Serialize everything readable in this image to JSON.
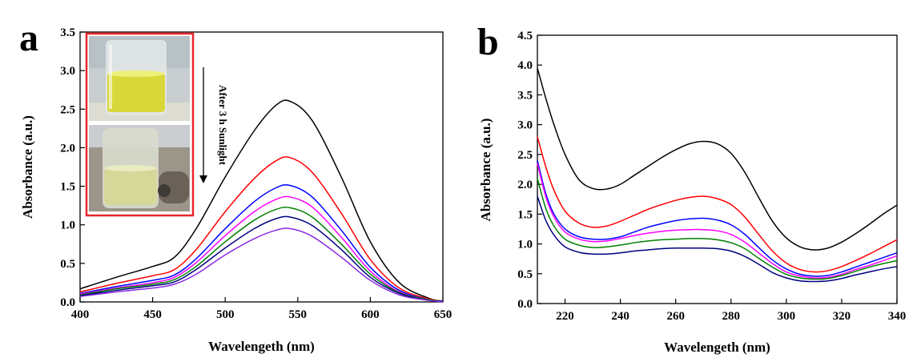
{
  "figure": {
    "panels": [
      {
        "letter": "a"
      },
      {
        "letter": "b"
      }
    ]
  },
  "inset": {
    "annotation": "After 3 h Sunlight",
    "images": [
      "yellow-solution-before",
      "pale-solution-after"
    ]
  },
  "chart_data": [
    {
      "type": "line",
      "panel": "a",
      "xlabel": "Wavelengeth (nm)",
      "ylabel": "Absorbance (a.u.)",
      "xlim": [
        400,
        650
      ],
      "ylim": [
        0,
        3.5
      ],
      "xticks": [
        400,
        450,
        500,
        550,
        600,
        650
      ],
      "yticks": [
        0.0,
        0.5,
        1.0,
        1.5,
        2.0,
        2.5,
        3.0,
        3.5
      ],
      "grid": false,
      "x": [
        400,
        425,
        450,
        465,
        480,
        500,
        520,
        535,
        545,
        560,
        580,
        600,
        620,
        640,
        650
      ],
      "series": [
        {
          "color": "#000000",
          "values": [
            0.17,
            0.32,
            0.46,
            0.58,
            0.95,
            1.62,
            2.22,
            2.55,
            2.6,
            2.35,
            1.62,
            0.78,
            0.25,
            0.05,
            0.01
          ]
        },
        {
          "color": "#ff0000",
          "values": [
            0.13,
            0.24,
            0.34,
            0.42,
            0.68,
            1.17,
            1.6,
            1.83,
            1.87,
            1.68,
            1.15,
            0.55,
            0.18,
            0.04,
            0.01
          ]
        },
        {
          "color": "#0000ff",
          "values": [
            0.11,
            0.2,
            0.28,
            0.35,
            0.56,
            0.95,
            1.3,
            1.48,
            1.51,
            1.36,
            0.93,
            0.45,
            0.15,
            0.03,
            0.01
          ]
        },
        {
          "color": "#ff00ff",
          "values": [
            0.1,
            0.18,
            0.25,
            0.32,
            0.51,
            0.86,
            1.17,
            1.33,
            1.36,
            1.23,
            0.84,
            0.4,
            0.13,
            0.03,
            0.01
          ]
        },
        {
          "color": "#008000",
          "values": [
            0.09,
            0.17,
            0.23,
            0.29,
            0.46,
            0.78,
            1.06,
            1.2,
            1.22,
            1.1,
            0.75,
            0.36,
            0.12,
            0.03,
            0.01
          ]
        },
        {
          "color": "#000080",
          "values": [
            0.08,
            0.15,
            0.21,
            0.26,
            0.42,
            0.7,
            0.95,
            1.08,
            1.1,
            0.99,
            0.68,
            0.32,
            0.11,
            0.02,
            0.01
          ]
        },
        {
          "color": "#8a2be2",
          "values": [
            0.07,
            0.13,
            0.18,
            0.23,
            0.36,
            0.61,
            0.82,
            0.93,
            0.95,
            0.85,
            0.58,
            0.28,
            0.09,
            0.02,
            0.0
          ]
        }
      ]
    },
    {
      "type": "line",
      "panel": "b",
      "xlabel": "Wavelengeth (nm)",
      "ylabel": "Absorbance (a.u.)",
      "xlim": [
        210,
        340
      ],
      "ylim": [
        0,
        4.5
      ],
      "xticks": [
        220,
        240,
        260,
        280,
        300,
        320,
        340
      ],
      "yticks": [
        0.0,
        0.5,
        1.0,
        1.5,
        2.0,
        2.5,
        3.0,
        3.5,
        4.0,
        4.5
      ],
      "grid": false,
      "x": [
        210,
        213,
        216,
        220,
        225,
        230,
        235,
        240,
        245,
        250,
        255,
        260,
        265,
        270,
        275,
        280,
        285,
        290,
        295,
        300,
        305,
        310,
        315,
        320,
        325,
        330,
        335,
        340
      ],
      "series": [
        {
          "color": "#000000",
          "values": [
            3.95,
            3.45,
            3.0,
            2.5,
            2.08,
            1.93,
            1.92,
            2.0,
            2.15,
            2.3,
            2.45,
            2.58,
            2.68,
            2.72,
            2.68,
            2.52,
            2.2,
            1.78,
            1.38,
            1.1,
            0.95,
            0.9,
            0.93,
            1.03,
            1.17,
            1.33,
            1.5,
            1.65
          ]
        },
        {
          "color": "#ff0000",
          "values": [
            2.8,
            2.3,
            1.9,
            1.55,
            1.35,
            1.28,
            1.3,
            1.38,
            1.48,
            1.58,
            1.66,
            1.73,
            1.78,
            1.8,
            1.76,
            1.66,
            1.45,
            1.16,
            0.88,
            0.68,
            0.57,
            0.53,
            0.55,
            0.62,
            0.72,
            0.83,
            0.95,
            1.07
          ]
        },
        {
          "color": "#0000ff",
          "values": [
            2.4,
            1.85,
            1.5,
            1.25,
            1.12,
            1.08,
            1.08,
            1.12,
            1.2,
            1.28,
            1.34,
            1.39,
            1.42,
            1.43,
            1.4,
            1.32,
            1.16,
            0.94,
            0.73,
            0.58,
            0.49,
            0.46,
            0.47,
            0.53,
            0.61,
            0.69,
            0.77,
            0.85
          ]
        },
        {
          "color": "#ff00ff",
          "values": [
            2.35,
            1.8,
            1.45,
            1.2,
            1.08,
            1.04,
            1.05,
            1.09,
            1.14,
            1.18,
            1.21,
            1.23,
            1.24,
            1.24,
            1.22,
            1.16,
            1.03,
            0.85,
            0.67,
            0.53,
            0.46,
            0.43,
            0.44,
            0.49,
            0.57,
            0.64,
            0.72,
            0.8
          ]
        },
        {
          "color": "#008000",
          "values": [
            2.1,
            1.6,
            1.3,
            1.08,
            0.98,
            0.94,
            0.95,
            0.98,
            1.02,
            1.05,
            1.07,
            1.08,
            1.09,
            1.09,
            1.07,
            1.02,
            0.92,
            0.76,
            0.61,
            0.49,
            0.43,
            0.41,
            0.42,
            0.47,
            0.54,
            0.61,
            0.67,
            0.72
          ]
        },
        {
          "color": "#000080",
          "values": [
            1.8,
            1.4,
            1.15,
            0.95,
            0.86,
            0.83,
            0.83,
            0.85,
            0.88,
            0.9,
            0.92,
            0.93,
            0.93,
            0.93,
            0.92,
            0.88,
            0.79,
            0.66,
            0.52,
            0.43,
            0.38,
            0.37,
            0.38,
            0.42,
            0.48,
            0.53,
            0.58,
            0.62
          ]
        }
      ]
    }
  ]
}
